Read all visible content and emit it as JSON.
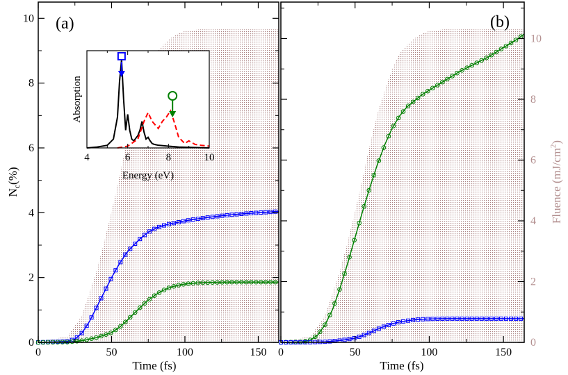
{
  "colors": {
    "blue": "#0000ff",
    "green": "#008000",
    "red": "#ff0000",
    "fluence": "#a98080",
    "fluence_axis": "#b38f8f",
    "black": "#000000"
  },
  "chart_data": [
    {
      "type": "line",
      "panel": "(a)",
      "xlabel": "Time (fs)",
      "ylabel": "N_c(%)",
      "ylabel_main": "N",
      "ylabel_sub": "c",
      "ylabel_suffix": "(%)",
      "xlim": [
        0,
        164
      ],
      "ylim": [
        0,
        10.5
      ],
      "xticks": [
        "0",
        "50",
        "100",
        "150"
      ],
      "yticks": [
        "0",
        "2",
        "4",
        "6",
        "8",
        "10"
      ],
      "series": [
        {
          "name": "blue-squares",
          "marker": "square",
          "color": "#0000ff",
          "x": [
            0,
            20,
            25,
            30,
            35,
            40,
            45,
            50,
            55,
            60,
            65,
            70,
            75,
            80,
            85,
            90,
            95,
            100,
            110,
            120,
            130,
            140,
            150,
            160,
            164
          ],
          "y": [
            0.0,
            0.03,
            0.1,
            0.3,
            0.65,
            1.1,
            1.55,
            2.0,
            2.4,
            2.75,
            3.0,
            3.22,
            3.4,
            3.52,
            3.6,
            3.66,
            3.7,
            3.75,
            3.82,
            3.88,
            3.93,
            3.97,
            4.0,
            4.03,
            4.04
          ]
        },
        {
          "name": "green-circles",
          "marker": "circle",
          "color": "#008000",
          "x": [
            0,
            20,
            30,
            40,
            50,
            55,
            60,
            65,
            70,
            75,
            80,
            85,
            90,
            95,
            100,
            110,
            120,
            130,
            140,
            150,
            160,
            164
          ],
          "y": [
            0.0,
            0.01,
            0.05,
            0.15,
            0.3,
            0.45,
            0.65,
            0.88,
            1.1,
            1.3,
            1.47,
            1.6,
            1.7,
            1.76,
            1.8,
            1.84,
            1.85,
            1.86,
            1.86,
            1.86,
            1.86,
            1.86
          ]
        }
      ],
      "fluence": {
        "x": [
          0,
          20,
          30,
          40,
          45,
          50,
          55,
          60,
          65,
          70,
          75,
          80,
          85,
          90,
          95,
          100,
          110,
          164
        ],
        "y": [
          0,
          0.2,
          0.9,
          2.4,
          3.3,
          4.3,
          5.4,
          6.5,
          7.5,
          8.3,
          9.0,
          9.5,
          9.8,
          10.0,
          10.15,
          10.25,
          10.3,
          10.3
        ]
      },
      "inset": {
        "type": "line",
        "xlabel": "Energy (eV)",
        "ylabel": "Absorption",
        "xlim": [
          4,
          10
        ],
        "ylim": [
          0,
          1.1
        ],
        "xticks": [
          "4",
          "6",
          "8",
          "10"
        ],
        "series": [
          {
            "name": "black-solid",
            "color": "#000000",
            "style": "solid",
            "x": [
              4,
              4.5,
              5.0,
              5.3,
              5.5,
              5.6,
              5.7,
              5.8,
              5.9,
              6.0,
              6.1,
              6.2,
              6.3,
              6.5,
              6.6,
              6.7,
              6.8,
              6.9,
              7.0,
              7.1,
              7.2,
              7.3,
              7.5,
              8.0,
              8.5,
              10
            ],
            "y": [
              0,
              0.01,
              0.03,
              0.1,
              0.35,
              0.75,
              1.0,
              0.55,
              0.2,
              0.38,
              0.2,
              0.1,
              0.08,
              0.14,
              0.2,
              0.3,
              0.18,
              0.1,
              0.12,
              0.08,
              0.05,
              0.04,
              0.03,
              0.02,
              0.01,
              0.0
            ]
          },
          {
            "name": "red-dashed",
            "color": "#ff0000",
            "style": "dashed",
            "x": [
              5.5,
              6.0,
              6.5,
              6.8,
              7.0,
              7.2,
              7.5,
              7.7,
              7.9,
              8.1,
              8.3,
              8.5,
              8.8,
              9.0,
              9.3,
              9.6,
              10
            ],
            "y": [
              0.0,
              0.02,
              0.1,
              0.3,
              0.4,
              0.3,
              0.22,
              0.3,
              0.35,
              0.42,
              0.28,
              0.12,
              0.05,
              0.08,
              0.04,
              0.03,
              0.02
            ]
          }
        ],
        "markers": [
          {
            "symbol": "square",
            "color": "#0000ff",
            "x": 5.7
          },
          {
            "symbol": "circle",
            "color": "#008000",
            "x": 8.2
          }
        ]
      }
    },
    {
      "type": "line",
      "panel": "(b)",
      "xlabel": "Time (fs)",
      "ylabel_right": "Fluence (mJ/cm^2)",
      "ylabel_right_main": "Fluence (mJ/cm",
      "ylabel_right_sup": "2",
      "ylabel_right_suffix": ")",
      "xlim": [
        0,
        164
      ],
      "ylim_right": [
        0,
        11.2
      ],
      "xticks": [
        "0",
        "50",
        "100",
        "150"
      ],
      "yticks_right": [
        "0",
        "2",
        "4",
        "6",
        "8",
        "10"
      ],
      "series": [
        {
          "name": "green-circles",
          "marker": "circle",
          "color": "#008000",
          "x": [
            0,
            15,
            20,
            25,
            30,
            35,
            40,
            45,
            50,
            55,
            60,
            65,
            70,
            75,
            80,
            85,
            90,
            95,
            100,
            110,
            120,
            130,
            140,
            150,
            160,
            164
          ],
          "y": [
            0.0,
            0.02,
            0.08,
            0.25,
            0.6,
            1.1,
            1.8,
            2.6,
            3.45,
            4.3,
            5.1,
            5.85,
            6.5,
            7.05,
            7.45,
            7.75,
            7.95,
            8.15,
            8.3,
            8.6,
            8.9,
            9.15,
            9.4,
            9.7,
            10.0,
            10.15
          ]
        },
        {
          "name": "blue-squares",
          "marker": "square",
          "color": "#0000ff",
          "x": [
            0,
            20,
            30,
            40,
            50,
            55,
            60,
            65,
            70,
            75,
            80,
            85,
            90,
            95,
            100,
            110,
            120,
            130,
            140,
            150,
            160,
            164
          ],
          "y": [
            0.0,
            0.005,
            0.02,
            0.06,
            0.14,
            0.22,
            0.32,
            0.43,
            0.53,
            0.61,
            0.67,
            0.71,
            0.74,
            0.76,
            0.77,
            0.78,
            0.78,
            0.78,
            0.78,
            0.78,
            0.78,
            0.78
          ]
        }
      ],
      "fluence": {
        "x": [
          0,
          20,
          30,
          40,
          45,
          50,
          55,
          60,
          65,
          70,
          75,
          80,
          85,
          90,
          95,
          100,
          110,
          164
        ],
        "y": [
          0,
          0.2,
          0.9,
          2.4,
          3.3,
          4.3,
          5.4,
          6.5,
          7.5,
          8.3,
          9.0,
          9.5,
          9.8,
          10.0,
          10.15,
          10.25,
          10.3,
          10.3
        ]
      }
    }
  ]
}
